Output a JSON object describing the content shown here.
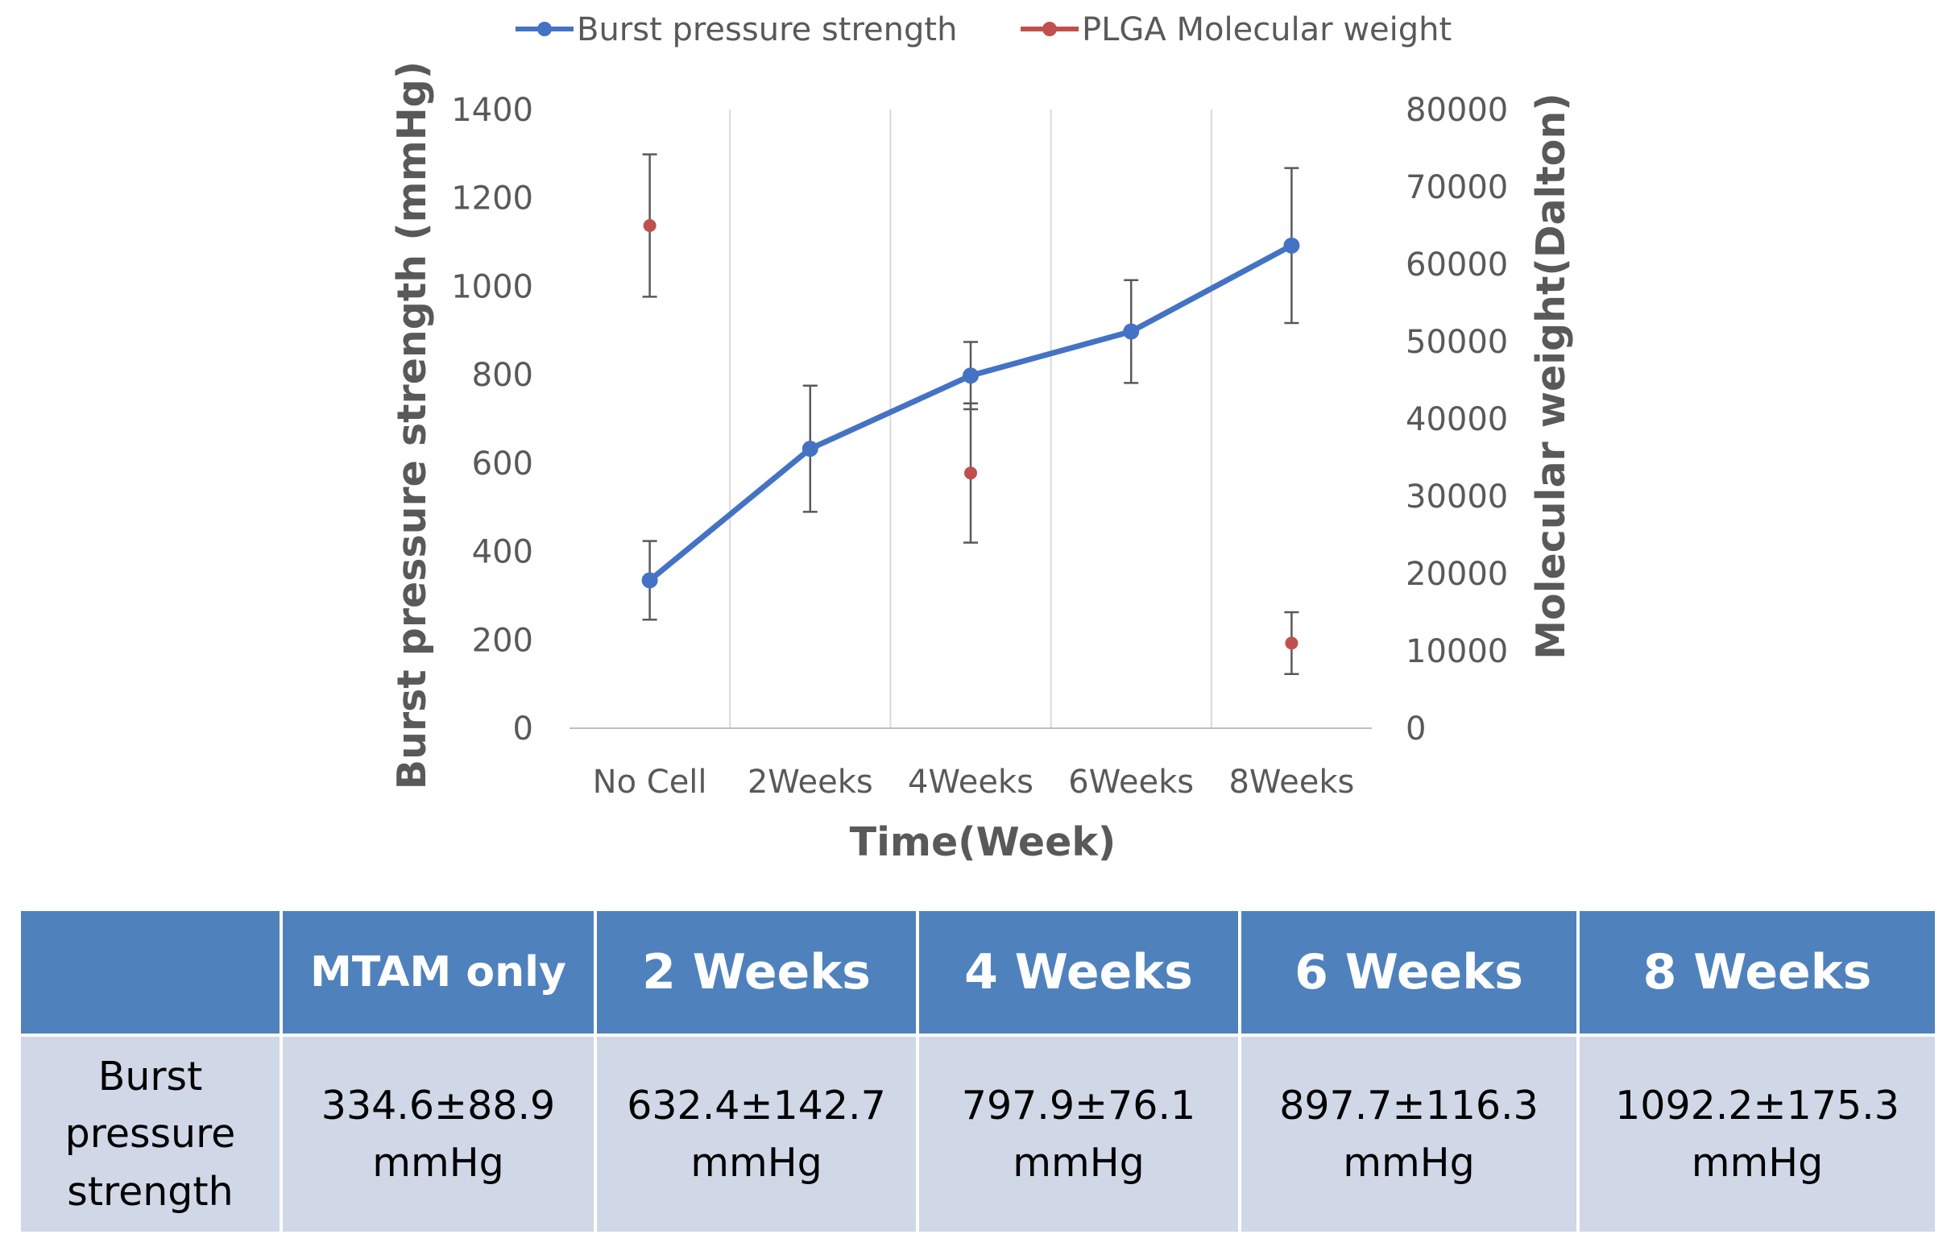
{
  "chart_data": {
    "type": "line",
    "categories": [
      "No Cell",
      "2Weeks",
      "4Weeks",
      "6Weeks",
      "8Weeks"
    ],
    "xlabel": "Time(Week)",
    "ylabel": "Burst pressure strength (mmHg)",
    "y2label": "Molecular weight(Dalton)",
    "ylim": [
      0,
      1400
    ],
    "y2lim": [
      0,
      80000
    ],
    "yticks": [
      0,
      200,
      400,
      600,
      800,
      1000,
      1200,
      1400
    ],
    "y2ticks": [
      0,
      10000,
      20000,
      30000,
      40000,
      50000,
      60000,
      70000,
      80000
    ],
    "legend_position": "top",
    "series": [
      {
        "name": "Burst pressure strength",
        "axis": "left",
        "style": "line-marker",
        "color": "#4472c4",
        "values": [
          334.6,
          632.4,
          797.9,
          897.7,
          1092.2
        ],
        "errors": [
          88.9,
          142.7,
          76.1,
          116.3,
          175.3
        ]
      },
      {
        "name": "PLGA Molecular weight",
        "axis": "right",
        "style": "marker",
        "color": "#c0504d",
        "values": [
          65000,
          null,
          33000,
          null,
          11000
        ],
        "errors": [
          9200,
          null,
          9000,
          null,
          4000
        ]
      }
    ]
  },
  "table": {
    "headers": [
      "",
      "MTAM only",
      "2 Weeks",
      "4 Weeks",
      "6 Weeks",
      "8 Weeks"
    ],
    "row_label": [
      "Burst",
      "pressure",
      "strength"
    ],
    "cells": [
      {
        "value": "334.6±88.9",
        "unit": "mmHg"
      },
      {
        "value": "632.4±142.7",
        "unit": "mmHg"
      },
      {
        "value": "797.9±76.1",
        "unit": "mmHg"
      },
      {
        "value": "897.7±116.3",
        "unit": "mmHg"
      },
      {
        "value": "1092.2±175.3",
        "unit": "mmHg"
      }
    ]
  }
}
